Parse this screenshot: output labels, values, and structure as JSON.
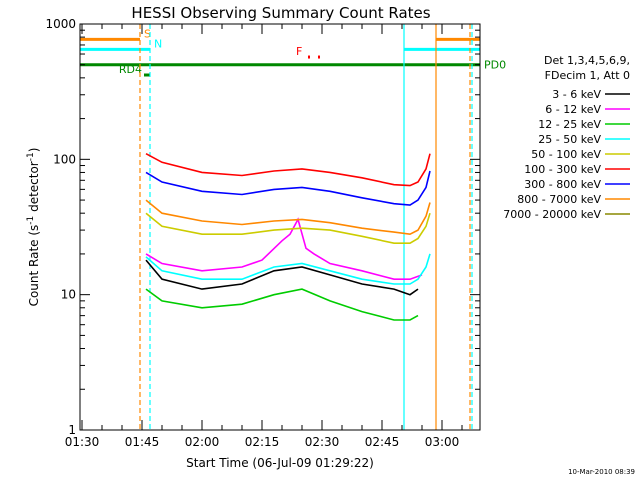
{
  "chart_data": {
    "type": "line",
    "title": "HESSI Observing Summary Count Rates",
    "xlabel": "Start Time (06-Jul-09 01:29:22)",
    "ylabel_prefix": "Count Rate (s",
    "ylabel_sup1": "-1",
    "ylabel_mid": " detector",
    "ylabel_sup2": "-1",
    "ylabel_suffix": ")",
    "x_ticks": [
      "01:30",
      "01:45",
      "02:00",
      "02:15",
      "02:30",
      "02:45",
      "03:00"
    ],
    "x_tick_minutes": [
      0,
      15,
      30,
      45,
      60,
      75,
      90
    ],
    "xlim_minutes": [
      -0.5,
      99.5
    ],
    "y_ticks": [
      "1",
      "10",
      "100",
      "1000"
    ],
    "ylim": [
      1,
      1000
    ],
    "yscale": "log",
    "legend_header": [
      "Det 1,3,4,5,6,9,",
      "FDecim 1, Att 0"
    ],
    "series": [
      {
        "name": "3 - 6 keV",
        "color": "#000000",
        "points": [
          [
            16,
            18
          ],
          [
            20,
            13
          ],
          [
            30,
            11
          ],
          [
            40,
            12
          ],
          [
            48,
            15
          ],
          [
            55,
            16
          ],
          [
            62,
            14
          ],
          [
            70,
            12
          ],
          [
            78,
            11
          ],
          [
            82,
            10
          ],
          [
            84,
            11
          ]
        ]
      },
      {
        "name": "6 - 12 keV",
        "color": "#ff00ff",
        "points": [
          [
            16,
            20
          ],
          [
            20,
            17
          ],
          [
            30,
            15
          ],
          [
            40,
            16
          ],
          [
            45,
            18
          ],
          [
            50,
            25
          ],
          [
            52,
            28
          ],
          [
            54,
            36
          ],
          [
            56,
            22
          ],
          [
            58,
            20
          ],
          [
            62,
            17
          ],
          [
            70,
            15
          ],
          [
            78,
            13
          ],
          [
            82,
            13
          ],
          [
            85,
            14
          ]
        ]
      },
      {
        "name": "12 - 25 keV",
        "color": "#00cc00",
        "points": [
          [
            16,
            11
          ],
          [
            20,
            9
          ],
          [
            30,
            8
          ],
          [
            40,
            8.5
          ],
          [
            48,
            10
          ],
          [
            55,
            11
          ],
          [
            62,
            9
          ],
          [
            70,
            7.5
          ],
          [
            78,
            6.5
          ],
          [
            82,
            6.5
          ],
          [
            84,
            7
          ]
        ]
      },
      {
        "name": "25 - 50 keV",
        "color": "#00ffff",
        "points": [
          [
            16,
            19
          ],
          [
            20,
            15
          ],
          [
            30,
            13
          ],
          [
            40,
            13
          ],
          [
            48,
            16
          ],
          [
            55,
            17
          ],
          [
            62,
            15
          ],
          [
            70,
            13
          ],
          [
            78,
            12
          ],
          [
            82,
            12
          ],
          [
            84,
            13
          ],
          [
            86,
            16
          ],
          [
            87,
            20
          ]
        ]
      },
      {
        "name": "50 - 100 keV",
        "color": "#cccc00",
        "points": [
          [
            16,
            40
          ],
          [
            20,
            32
          ],
          [
            30,
            28
          ],
          [
            40,
            28
          ],
          [
            48,
            30
          ],
          [
            55,
            31
          ],
          [
            62,
            30
          ],
          [
            70,
            27
          ],
          [
            78,
            24
          ],
          [
            82,
            24
          ],
          [
            84,
            26
          ],
          [
            86,
            32
          ],
          [
            87,
            40
          ]
        ]
      },
      {
        "name": "100 - 300 keV",
        "color": "#ff0000",
        "points": [
          [
            16,
            110
          ],
          [
            20,
            95
          ],
          [
            30,
            80
          ],
          [
            40,
            76
          ],
          [
            48,
            82
          ],
          [
            55,
            85
          ],
          [
            62,
            80
          ],
          [
            70,
            73
          ],
          [
            78,
            65
          ],
          [
            82,
            64
          ],
          [
            84,
            68
          ],
          [
            86,
            85
          ],
          [
            87,
            110
          ]
        ]
      },
      {
        "name": "300 - 800 keV",
        "color": "#0000ff",
        "points": [
          [
            16,
            80
          ],
          [
            20,
            68
          ],
          [
            30,
            58
          ],
          [
            40,
            55
          ],
          [
            48,
            60
          ],
          [
            55,
            62
          ],
          [
            62,
            58
          ],
          [
            70,
            52
          ],
          [
            78,
            47
          ],
          [
            82,
            46
          ],
          [
            84,
            50
          ],
          [
            86,
            62
          ],
          [
            87,
            82
          ]
        ]
      },
      {
        "name": "800 - 7000 keV",
        "color": "#ff8800",
        "points": [
          [
            16,
            50
          ],
          [
            20,
            40
          ],
          [
            30,
            35
          ],
          [
            40,
            33
          ],
          [
            48,
            35
          ],
          [
            55,
            36
          ],
          [
            62,
            34
          ],
          [
            70,
            31
          ],
          [
            78,
            29
          ],
          [
            82,
            28
          ],
          [
            84,
            30
          ],
          [
            86,
            38
          ],
          [
            87,
            48
          ]
        ]
      },
      {
        "name": "7000 - 20000 keV",
        "color": "#888800",
        "points": []
      }
    ],
    "flags": [
      {
        "label": "S",
        "color": "#ff8800",
        "y": 770,
        "segments": [
          [
            -0.5,
            14.5
          ],
          [
            88.5,
            99.5
          ]
        ]
      },
      {
        "label": "N",
        "color": "#00ffff",
        "y": 650,
        "segments": [
          [
            -0.5,
            17.0
          ],
          [
            80.5,
            99.5
          ]
        ]
      },
      {
        "label": "F",
        "color": "#ff0000",
        "y": 570,
        "segments": [
          [
            56.5,
            57.0
          ],
          [
            59.0,
            59.5
          ]
        ]
      },
      {
        "label": "PD0",
        "color": "#008800",
        "y": 500,
        "segments": [
          [
            -0.5,
            99.5
          ]
        ]
      },
      {
        "label": "RD4",
        "color": "#008800",
        "y": 420,
        "segments": [
          [
            15.5,
            17.0
          ]
        ]
      }
    ],
    "vlines": [
      {
        "x": 14.5,
        "color": "#ff8800",
        "dash": true
      },
      {
        "x": 17.0,
        "color": "#00ffff",
        "dash": true
      },
      {
        "x": 80.5,
        "color": "#00ffff",
        "dash": false
      },
      {
        "x": 88.5,
        "color": "#ff8800",
        "dash": false
      },
      {
        "x": 97.0,
        "color": "#ff8800",
        "dash": true
      },
      {
        "x": 97.5,
        "color": "#00ffff",
        "dash": true
      }
    ],
    "timestamp": "10-Mar-2010 08:39"
  }
}
